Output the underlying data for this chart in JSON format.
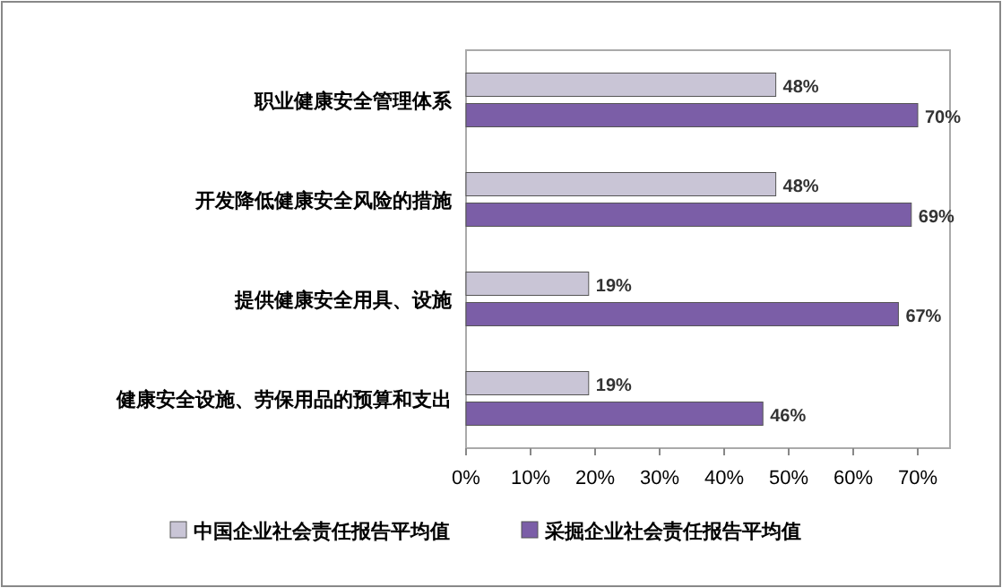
{
  "chart_data": {
    "type": "bar",
    "orientation": "horizontal",
    "categories": [
      "职业健康安全管理体系",
      "开发降低健康安全风险的措施",
      "提供健康安全用具、设施",
      "健康安全设施、劳保用品的预算和支出"
    ],
    "series": [
      {
        "name": "中国企业社会责任报告平均值",
        "color": "#c9c5d6",
        "values": [
          48,
          48,
          19,
          19
        ],
        "value_labels": [
          "48%",
          "48%",
          "19%",
          "19%"
        ]
      },
      {
        "name": "采掘企业社会责任报告平均值",
        "color": "#7b5ea7",
        "values": [
          70,
          69,
          67,
          46
        ],
        "value_labels": [
          "70%",
          "69%",
          "67%",
          "46%"
        ]
      }
    ],
    "xlim": [
      0,
      75
    ],
    "xticks": [
      {
        "value": 0,
        "label": "0%"
      },
      {
        "value": 10,
        "label": "10%"
      },
      {
        "value": 20,
        "label": "20%"
      },
      {
        "value": 30,
        "label": "30%"
      },
      {
        "value": 40,
        "label": "40%"
      },
      {
        "value": 50,
        "label": "50%"
      },
      {
        "value": 60,
        "label": "60%"
      },
      {
        "value": 70,
        "label": "70%"
      }
    ],
    "legend": "bottom"
  }
}
